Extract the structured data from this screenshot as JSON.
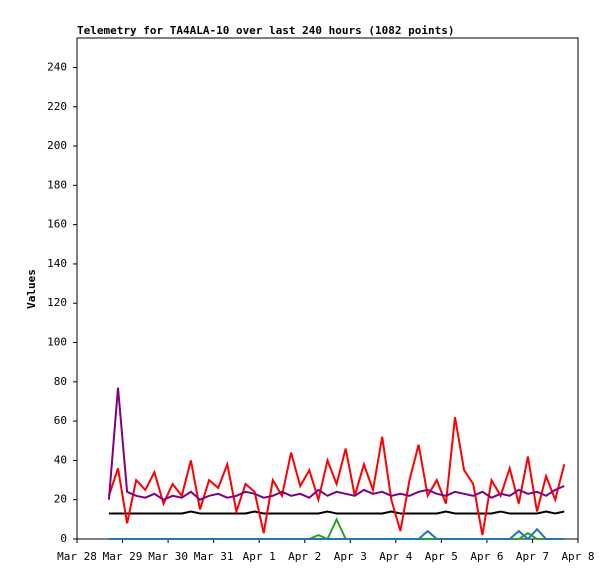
{
  "chart_data": {
    "type": "line",
    "title": "Telemetry for TA4ALA-10 over last 240 hours (1082 points)",
    "y_label": "Values",
    "x": [
      0.7,
      0.9,
      1.1,
      1.3,
      1.5,
      1.7,
      1.9,
      2.1,
      2.3,
      2.5,
      2.7,
      2.9,
      3.1,
      3.3,
      3.5,
      3.7,
      3.9,
      4.1,
      4.3,
      4.5,
      4.7,
      4.9,
      5.1,
      5.3,
      5.5,
      5.7,
      5.9,
      6.1,
      6.3,
      6.5,
      6.7,
      6.9,
      7.1,
      7.3,
      7.5,
      7.7,
      7.9,
      8.1,
      8.3,
      8.5,
      8.7,
      8.9,
      9.1,
      9.3,
      9.5,
      9.7,
      9.9,
      10.1,
      10.3,
      10.5,
      10.7
    ],
    "series": [
      {
        "color": "#000000",
        "values": [
          13,
          13,
          13,
          13,
          13,
          13,
          13,
          13,
          13,
          14,
          13,
          13,
          13,
          13,
          13,
          13,
          14,
          13,
          13,
          13,
          13,
          13,
          13,
          13,
          14,
          13,
          13,
          13,
          13,
          13,
          13,
          14,
          13,
          13,
          13,
          13,
          13,
          14,
          13,
          13,
          13,
          13,
          13,
          14,
          13,
          13,
          13,
          13,
          14,
          13,
          14
        ]
      },
      {
        "color": "#ff0000",
        "values": [
          22,
          36,
          8,
          30,
          25,
          34,
          18,
          28,
          22,
          40,
          15,
          30,
          26,
          38,
          14,
          28,
          24,
          3,
          30,
          22,
          44,
          27,
          35,
          20,
          40,
          28,
          46,
          22,
          38,
          25,
          52,
          20,
          4,
          30,
          48,
          22,
          30,
          18,
          62,
          35,
          28,
          2,
          30,
          22,
          36,
          18,
          42,
          14,
          32,
          20,
          38
        ]
      },
      {
        "color": "#800080",
        "values": [
          20,
          77,
          24,
          22,
          21,
          23,
          20,
          22,
          21,
          24,
          20,
          22,
          23,
          21,
          22,
          24,
          23,
          21,
          22,
          24,
          22,
          23,
          21,
          25,
          22,
          24,
          23,
          22,
          25,
          23,
          24,
          22,
          23,
          22,
          24,
          25,
          23,
          22,
          24,
          23,
          22,
          24,
          21,
          23,
          22,
          25,
          23,
          24,
          22,
          25,
          27
        ]
      },
      {
        "color": "#2ca02c",
        "values": [
          0,
          0,
          0,
          0,
          0,
          0,
          0,
          0,
          0,
          0,
          0,
          0,
          0,
          0,
          0,
          0,
          0,
          0,
          0,
          0,
          0,
          0,
          0,
          2,
          0,
          10,
          0,
          0,
          0,
          0,
          0,
          0,
          0,
          0,
          0,
          0,
          0,
          0,
          0,
          0,
          0,
          0,
          0,
          0,
          0,
          0,
          3,
          0,
          0,
          0,
          0
        ]
      },
      {
        "color": "#1f77b4",
        "values": [
          0,
          0,
          0,
          0,
          0,
          0,
          0,
          0,
          0,
          0,
          0,
          0,
          0,
          0,
          0,
          0,
          0,
          0,
          0,
          0,
          0,
          0,
          0,
          0,
          0,
          0,
          0,
          0,
          0,
          0,
          0,
          0,
          0,
          0,
          0,
          4,
          0,
          0,
          0,
          0,
          0,
          0,
          0,
          0,
          0,
          4,
          0,
          5,
          0,
          0,
          0
        ]
      }
    ],
    "xlim": [
      0,
      11
    ],
    "xticks": [
      {
        "value": 0,
        "label": "Mar 28"
      },
      {
        "value": 1,
        "label": "Mar 29"
      },
      {
        "value": 2,
        "label": "Mar 30"
      },
      {
        "value": 3,
        "label": "Mar 31"
      },
      {
        "value": 4,
        "label": "Apr 1"
      },
      {
        "value": 5,
        "label": "Apr 2"
      },
      {
        "value": 6,
        "label": "Apr 3"
      },
      {
        "value": 7,
        "label": "Apr 4"
      },
      {
        "value": 8,
        "label": "Apr 5"
      },
      {
        "value": 9,
        "label": "Apr 6"
      },
      {
        "value": 10,
        "label": "Apr 7"
      },
      {
        "value": 11,
        "label": "Apr 8"
      }
    ],
    "ylim": [
      0,
      255
    ],
    "yticks": [
      0,
      20,
      40,
      60,
      80,
      100,
      120,
      140,
      160,
      180,
      200,
      220,
      240
    ],
    "grid": false
  }
}
